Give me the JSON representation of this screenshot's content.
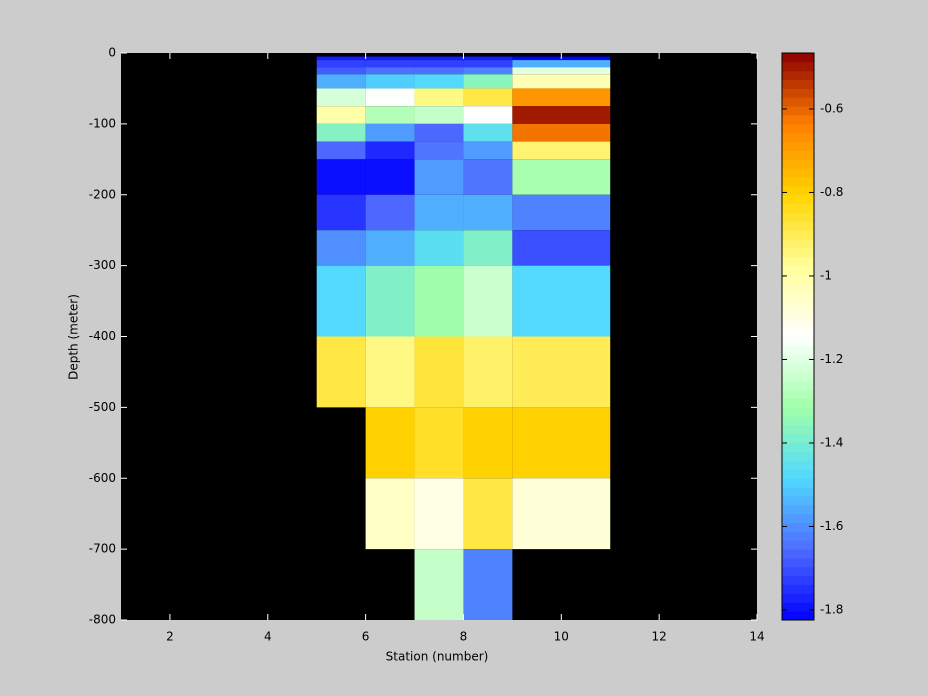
{
  "chart_data": {
    "type": "heatmap",
    "xlabel": "Station (number)",
    "ylabel": "Depth (meter)",
    "x_edges": [
      5,
      6,
      7,
      8,
      9,
      11
    ],
    "y_edges": [
      -5,
      -10,
      -20,
      -30,
      -50,
      -75,
      -100,
      -125,
      -150,
      -200,
      -250,
      -300,
      -400,
      -500,
      -600,
      -700,
      -800
    ],
    "values": [
      [
        -1.78,
        -1.78,
        -1.78,
        -1.78,
        -1.82
      ],
      [
        -1.72,
        -1.72,
        -1.72,
        -1.72,
        -1.55
      ],
      [
        -1.68,
        -1.65,
        -1.65,
        -1.62,
        -1.2
      ],
      [
        -1.55,
        -1.5,
        -1.48,
        -1.36,
        -1.02
      ],
      [
        -1.22,
        -1.15,
        -0.95,
        -0.88,
        -0.68
      ],
      [
        -1.0,
        -1.28,
        -1.25,
        -1.15,
        -0.5
      ],
      [
        -1.37,
        -1.58,
        -1.66,
        -1.45,
        -0.62
      ],
      [
        -1.66,
        -1.76,
        -1.64,
        -1.58,
        -0.93
      ],
      [
        -1.8,
        -1.8,
        -1.58,
        -1.64,
        -1.3
      ],
      [
        -1.74,
        -1.66,
        -1.55,
        -1.55,
        -1.62
      ],
      [
        -1.6,
        -1.55,
        -1.46,
        -1.38,
        -1.7
      ],
      [
        -1.48,
        -1.38,
        -1.32,
        -1.24,
        -1.48
      ],
      [
        -0.88,
        -0.95,
        -0.87,
        -0.92,
        -0.9
      ],
      [
        null,
        -0.8,
        -0.85,
        -0.8,
        -0.8
      ],
      [
        null,
        -1.05,
        -1.1,
        -0.88,
        -1.08
      ],
      [
        null,
        null,
        -1.25,
        -1.62,
        null
      ]
    ],
    "xlim": [
      1,
      14
    ],
    "xticks": [
      2,
      4,
      6,
      8,
      10,
      12,
      14
    ],
    "ylim": [
      -800,
      0
    ],
    "yticks": [
      0,
      -100,
      -200,
      -300,
      -400,
      -500,
      -600,
      -700,
      -800
    ],
    "clim": [
      -1.824,
      -0.466
    ],
    "cticks": [
      -0.6,
      -0.8,
      -1,
      -1.2,
      -1.4,
      -1.6,
      -1.8
    ],
    "colormap": [
      "#0000ff",
      "#4f6cff",
      "#50d8ff",
      "#a0ffa8",
      "#ffffff",
      "#ffff9a",
      "#ffd400",
      "#ff8000",
      "#8b0000"
    ],
    "background": "#000000"
  }
}
